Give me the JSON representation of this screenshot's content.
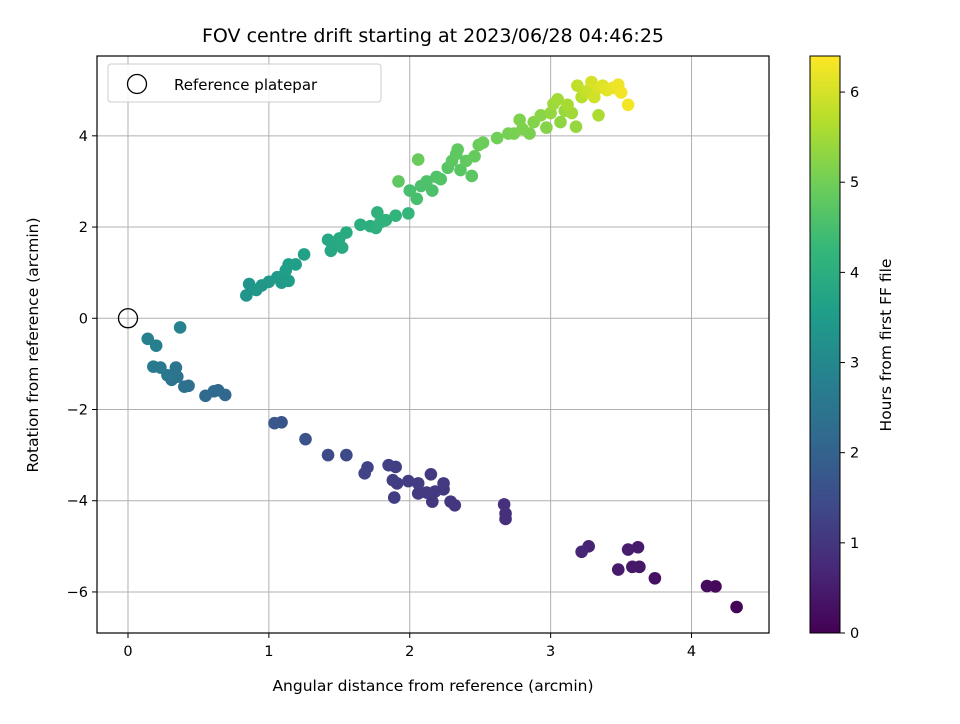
{
  "chart_data": {
    "type": "scatter",
    "title": "FOV centre drift starting at 2023/06/28 04:46:25",
    "xlabel": "Angular distance from reference (arcmin)",
    "ylabel": "Rotation from reference (arcmin)",
    "xlim": [
      -0.22,
      4.55
    ],
    "ylim": [
      -6.9,
      5.75
    ],
    "xticks": [
      0,
      1,
      2,
      3,
      4
    ],
    "yticks": [
      -6,
      -4,
      -2,
      0,
      2,
      4
    ],
    "grid": true,
    "legend": {
      "position": "upper-left",
      "entries": [
        {
          "label": "Reference platepar",
          "marker": "open-circle"
        }
      ]
    },
    "reference_point": {
      "x": 0,
      "y": 0
    },
    "colorbar": {
      "label": "Hours from first FF file",
      "min": 0,
      "max": 6.4,
      "ticks": [
        0,
        1,
        2,
        3,
        4,
        5,
        6
      ],
      "colormap": "viridis"
    },
    "colormap_stops": [
      "#440154",
      "#482878",
      "#3e4a89",
      "#31688e",
      "#26828e",
      "#1f9e89",
      "#35b779",
      "#6ece58",
      "#b5de2b",
      "#fde725"
    ],
    "points": [
      {
        "x": 4.32,
        "y": -6.33,
        "c": 0.05
      },
      {
        "x": 4.17,
        "y": -5.88,
        "c": 0.12
      },
      {
        "x": 4.11,
        "y": -5.87,
        "c": 0.18
      },
      {
        "x": 3.74,
        "y": -5.7,
        "c": 0.3
      },
      {
        "x": 3.63,
        "y": -5.45,
        "c": 0.38
      },
      {
        "x": 3.58,
        "y": -5.45,
        "c": 0.42
      },
      {
        "x": 3.62,
        "y": -5.02,
        "c": 0.48
      },
      {
        "x": 3.55,
        "y": -5.07,
        "c": 0.52
      },
      {
        "x": 3.48,
        "y": -5.51,
        "c": 0.45
      },
      {
        "x": 3.27,
        "y": -5.0,
        "c": 0.62
      },
      {
        "x": 3.22,
        "y": -5.12,
        "c": 0.68
      },
      {
        "x": 2.68,
        "y": -4.4,
        "c": 0.85
      },
      {
        "x": 2.68,
        "y": -4.28,
        "c": 0.88
      },
      {
        "x": 2.67,
        "y": -4.08,
        "c": 0.9
      },
      {
        "x": 2.32,
        "y": -4.1,
        "c": 1.0
      },
      {
        "x": 2.29,
        "y": -4.02,
        "c": 1.02
      },
      {
        "x": 2.24,
        "y": -3.75,
        "c": 1.05
      },
      {
        "x": 2.24,
        "y": -3.62,
        "c": 1.08
      },
      {
        "x": 2.18,
        "y": -3.8,
        "c": 1.07
      },
      {
        "x": 2.16,
        "y": -4.02,
        "c": 1.04
      },
      {
        "x": 2.15,
        "y": -3.42,
        "c": 1.1
      },
      {
        "x": 2.12,
        "y": -3.82,
        "c": 1.09
      },
      {
        "x": 2.06,
        "y": -3.84,
        "c": 1.1
      },
      {
        "x": 2.06,
        "y": -3.62,
        "c": 1.12
      },
      {
        "x": 1.99,
        "y": -3.57,
        "c": 1.14
      },
      {
        "x": 1.91,
        "y": -3.62,
        "c": 1.16
      },
      {
        "x": 1.89,
        "y": -3.93,
        "c": 1.13
      },
      {
        "x": 1.88,
        "y": -3.55,
        "c": 1.17
      },
      {
        "x": 1.9,
        "y": -3.26,
        "c": 1.2
      },
      {
        "x": 1.85,
        "y": -3.22,
        "c": 1.22
      },
      {
        "x": 1.7,
        "y": -3.27,
        "c": 1.3
      },
      {
        "x": 1.68,
        "y": -3.4,
        "c": 1.28
      },
      {
        "x": 1.55,
        "y": -3.0,
        "c": 1.4
      },
      {
        "x": 1.42,
        "y": -3.0,
        "c": 1.45
      },
      {
        "x": 1.26,
        "y": -2.65,
        "c": 1.6
      },
      {
        "x": 1.09,
        "y": -2.28,
        "c": 1.7
      },
      {
        "x": 1.04,
        "y": -2.3,
        "c": 1.72
      },
      {
        "x": 0.69,
        "y": -1.68,
        "c": 2.1
      },
      {
        "x": 0.64,
        "y": -1.58,
        "c": 2.15
      },
      {
        "x": 0.61,
        "y": -1.6,
        "c": 2.18
      },
      {
        "x": 0.55,
        "y": -1.7,
        "c": 2.2
      },
      {
        "x": 0.43,
        "y": -1.48,
        "c": 2.35
      },
      {
        "x": 0.4,
        "y": -1.5,
        "c": 2.38
      },
      {
        "x": 0.35,
        "y": -1.28,
        "c": 2.45
      },
      {
        "x": 0.34,
        "y": -1.08,
        "c": 2.5
      },
      {
        "x": 0.31,
        "y": -1.35,
        "c": 2.42
      },
      {
        "x": 0.28,
        "y": -1.25,
        "c": 2.55
      },
      {
        "x": 0.23,
        "y": -1.08,
        "c": 2.6
      },
      {
        "x": 0.18,
        "y": -1.06,
        "c": 2.62
      },
      {
        "x": 0.2,
        "y": -0.6,
        "c": 2.75
      },
      {
        "x": 0.14,
        "y": -0.45,
        "c": 2.8
      },
      {
        "x": 0.37,
        "y": -0.2,
        "c": 2.85
      },
      {
        "x": 0.84,
        "y": 0.5,
        "c": 3.3
      },
      {
        "x": 0.86,
        "y": 0.75,
        "c": 3.32
      },
      {
        "x": 0.91,
        "y": 0.62,
        "c": 3.35
      },
      {
        "x": 0.95,
        "y": 0.72,
        "c": 3.38
      },
      {
        "x": 1.0,
        "y": 0.8,
        "c": 3.4
      },
      {
        "x": 1.06,
        "y": 0.9,
        "c": 3.45
      },
      {
        "x": 1.09,
        "y": 0.78,
        "c": 3.48
      },
      {
        "x": 1.11,
        "y": 0.95,
        "c": 3.5
      },
      {
        "x": 1.14,
        "y": 0.82,
        "c": 3.52
      },
      {
        "x": 1.12,
        "y": 1.05,
        "c": 3.55
      },
      {
        "x": 1.14,
        "y": 1.18,
        "c": 3.58
      },
      {
        "x": 1.19,
        "y": 1.18,
        "c": 3.6
      },
      {
        "x": 1.25,
        "y": 1.4,
        "c": 3.65
      },
      {
        "x": 1.42,
        "y": 1.72,
        "c": 3.8
      },
      {
        "x": 1.44,
        "y": 1.48,
        "c": 3.82
      },
      {
        "x": 1.47,
        "y": 1.65,
        "c": 3.85
      },
      {
        "x": 1.5,
        "y": 1.75,
        "c": 3.87
      },
      {
        "x": 1.52,
        "y": 1.55,
        "c": 3.88
      },
      {
        "x": 1.55,
        "y": 1.88,
        "c": 3.9
      },
      {
        "x": 1.65,
        "y": 2.05,
        "c": 4.0
      },
      {
        "x": 1.72,
        "y": 2.02,
        "c": 4.02
      },
      {
        "x": 1.76,
        "y": 1.98,
        "c": 4.05
      },
      {
        "x": 1.77,
        "y": 2.32,
        "c": 4.08
      },
      {
        "x": 1.79,
        "y": 2.1,
        "c": 4.1
      },
      {
        "x": 1.83,
        "y": 2.15,
        "c": 4.12
      },
      {
        "x": 1.9,
        "y": 2.25,
        "c": 4.15
      },
      {
        "x": 1.99,
        "y": 2.3,
        "c": 4.2
      },
      {
        "x": 1.92,
        "y": 3.0,
        "c": 4.8
      },
      {
        "x": 2.0,
        "y": 2.8,
        "c": 4.5
      },
      {
        "x": 2.05,
        "y": 2.62,
        "c": 4.52
      },
      {
        "x": 2.08,
        "y": 2.9,
        "c": 4.55
      },
      {
        "x": 2.12,
        "y": 3.0,
        "c": 4.58
      },
      {
        "x": 2.16,
        "y": 2.8,
        "c": 4.56
      },
      {
        "x": 2.19,
        "y": 3.1,
        "c": 4.62
      },
      {
        "x": 2.22,
        "y": 3.05,
        "c": 4.64
      },
      {
        "x": 2.06,
        "y": 3.48,
        "c": 4.9
      },
      {
        "x": 2.27,
        "y": 3.3,
        "c": 4.7
      },
      {
        "x": 2.3,
        "y": 3.45,
        "c": 4.75
      },
      {
        "x": 2.33,
        "y": 3.6,
        "c": 4.78
      },
      {
        "x": 2.34,
        "y": 3.7,
        "c": 4.8
      },
      {
        "x": 2.36,
        "y": 3.25,
        "c": 4.72
      },
      {
        "x": 2.4,
        "y": 3.45,
        "c": 4.82
      },
      {
        "x": 2.44,
        "y": 3.12,
        "c": 4.74
      },
      {
        "x": 2.46,
        "y": 3.55,
        "c": 4.85
      },
      {
        "x": 2.49,
        "y": 3.8,
        "c": 4.9
      },
      {
        "x": 2.52,
        "y": 3.85,
        "c": 4.95
      },
      {
        "x": 2.62,
        "y": 3.95,
        "c": 5.0
      },
      {
        "x": 2.7,
        "y": 4.05,
        "c": 5.05
      },
      {
        "x": 2.74,
        "y": 4.05,
        "c": 5.08
      },
      {
        "x": 2.78,
        "y": 4.35,
        "c": 5.15
      },
      {
        "x": 2.8,
        "y": 4.15,
        "c": 5.12
      },
      {
        "x": 2.85,
        "y": 4.05,
        "c": 5.1
      },
      {
        "x": 2.88,
        "y": 4.3,
        "c": 5.2
      },
      {
        "x": 2.93,
        "y": 4.45,
        "c": 5.25
      },
      {
        "x": 2.97,
        "y": 4.18,
        "c": 5.22
      },
      {
        "x": 3.0,
        "y": 4.5,
        "c": 5.35
      },
      {
        "x": 3.02,
        "y": 4.7,
        "c": 5.45
      },
      {
        "x": 3.05,
        "y": 4.8,
        "c": 5.5
      },
      {
        "x": 3.07,
        "y": 4.3,
        "c": 5.3
      },
      {
        "x": 3.1,
        "y": 4.55,
        "c": 5.4
      },
      {
        "x": 3.12,
        "y": 4.68,
        "c": 5.55
      },
      {
        "x": 3.15,
        "y": 4.5,
        "c": 5.48
      },
      {
        "x": 3.18,
        "y": 4.2,
        "c": 5.38
      },
      {
        "x": 3.19,
        "y": 5.1,
        "c": 5.8
      },
      {
        "x": 3.22,
        "y": 4.85,
        "c": 5.7
      },
      {
        "x": 3.25,
        "y": 4.95,
        "c": 5.85
      },
      {
        "x": 3.27,
        "y": 5.0,
        "c": 5.9
      },
      {
        "x": 3.29,
        "y": 5.18,
        "c": 6.0
      },
      {
        "x": 3.31,
        "y": 4.85,
        "c": 5.95
      },
      {
        "x": 3.34,
        "y": 5.05,
        "c": 6.05
      },
      {
        "x": 3.37,
        "y": 5.1,
        "c": 6.1
      },
      {
        "x": 3.34,
        "y": 4.45,
        "c": 5.6
      },
      {
        "x": 3.4,
        "y": 5.0,
        "c": 6.15
      },
      {
        "x": 3.44,
        "y": 5.05,
        "c": 6.2
      },
      {
        "x": 3.48,
        "y": 5.12,
        "c": 6.25
      },
      {
        "x": 3.5,
        "y": 4.95,
        "c": 6.28
      },
      {
        "x": 3.55,
        "y": 4.68,
        "c": 6.3
      }
    ]
  }
}
